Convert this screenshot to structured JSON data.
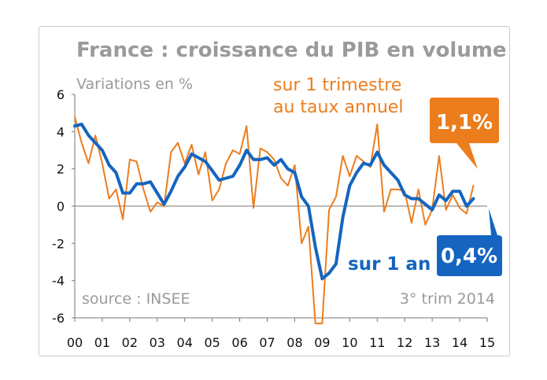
{
  "chart_data": {
    "type": "line",
    "title": "France : croissance du PIB en volume",
    "ylabel": "Variations en %",
    "ylim": [
      -6,
      6
    ],
    "yticks": [
      6,
      4,
      2,
      0,
      -2,
      -4,
      -6
    ],
    "x_tick_labels": [
      "00",
      "01",
      "02",
      "03",
      "04",
      "05",
      "06",
      "07",
      "08",
      "09",
      "10",
      "11",
      "12",
      "13",
      "14",
      "15"
    ],
    "xlim": [
      2000,
      2015
    ],
    "series": [
      {
        "name": "sur 1 trimestre au taux annuel",
        "color": "#ec7d1d",
        "x": [
          2000.0,
          2000.25,
          2000.5,
          2000.75,
          2001.0,
          2001.25,
          2001.5,
          2001.75,
          2002.0,
          2002.25,
          2002.5,
          2002.75,
          2003.0,
          2003.25,
          2003.5,
          2003.75,
          2004.0,
          2004.25,
          2004.5,
          2004.75,
          2005.0,
          2005.25,
          2005.5,
          2005.75,
          2006.0,
          2006.25,
          2006.5,
          2006.75,
          2007.0,
          2007.25,
          2007.5,
          2007.75,
          2008.0,
          2008.25,
          2008.5,
          2008.75,
          2009.0,
          2009.25,
          2009.5,
          2009.75,
          2010.0,
          2010.25,
          2010.5,
          2010.75,
          2011.0,
          2011.25,
          2011.5,
          2011.75,
          2012.0,
          2012.25,
          2012.5,
          2012.75,
          2013.0,
          2013.25,
          2013.5,
          2013.75,
          2014.0,
          2014.25,
          2014.5
        ],
        "values": [
          4.8,
          3.4,
          2.3,
          3.8,
          2.3,
          0.4,
          0.9,
          -0.7,
          2.5,
          2.4,
          0.9,
          -0.3,
          0.2,
          0.0,
          2.9,
          3.4,
          2.3,
          3.3,
          1.7,
          2.9,
          0.3,
          0.9,
          2.3,
          3.0,
          2.8,
          4.3,
          -0.1,
          3.1,
          2.9,
          2.5,
          1.5,
          1.1,
          2.2,
          -2.0,
          -1.1,
          -6.3,
          -6.3,
          -0.2,
          0.5,
          2.7,
          1.6,
          2.7,
          2.4,
          2.1,
          4.4,
          -0.3,
          0.9,
          0.9,
          0.8,
          -0.9,
          0.9,
          -1.0,
          -0.2,
          2.7,
          -0.2,
          0.6,
          -0.1,
          -0.4,
          1.1
        ]
      },
      {
        "name": "sur 1 an",
        "color": "#1565c0",
        "x": [
          2000.0,
          2000.25,
          2000.5,
          2000.75,
          2001.0,
          2001.25,
          2001.5,
          2001.75,
          2002.0,
          2002.25,
          2002.5,
          2002.75,
          2003.0,
          2003.25,
          2003.5,
          2003.75,
          2004.0,
          2004.25,
          2004.5,
          2004.75,
          2005.0,
          2005.25,
          2005.5,
          2005.75,
          2006.0,
          2006.25,
          2006.5,
          2006.75,
          2007.0,
          2007.25,
          2007.5,
          2007.75,
          2008.0,
          2008.25,
          2008.5,
          2008.75,
          2009.0,
          2009.25,
          2009.5,
          2009.75,
          2010.0,
          2010.25,
          2010.5,
          2010.75,
          2011.0,
          2011.25,
          2011.5,
          2011.75,
          2012.0,
          2012.25,
          2012.5,
          2012.75,
          2013.0,
          2013.25,
          2013.5,
          2013.75,
          2014.0,
          2014.25,
          2014.5
        ],
        "values": [
          4.3,
          4.4,
          3.8,
          3.4,
          3.0,
          2.2,
          1.8,
          0.7,
          0.7,
          1.2,
          1.2,
          1.3,
          0.7,
          0.1,
          0.8,
          1.6,
          2.1,
          2.8,
          2.6,
          2.4,
          1.9,
          1.4,
          1.5,
          1.6,
          2.2,
          3.0,
          2.5,
          2.5,
          2.6,
          2.2,
          2.5,
          2.0,
          1.8,
          0.5,
          0.0,
          -2.2,
          -3.9,
          -3.6,
          -3.1,
          -0.6,
          1.1,
          1.8,
          2.3,
          2.2,
          2.9,
          2.2,
          1.8,
          1.4,
          0.6,
          0.4,
          0.4,
          0.1,
          -0.2,
          0.6,
          0.3,
          0.8,
          0.8,
          0.0,
          0.4
        ]
      }
    ],
    "annotations": {
      "orange_label_line1": "sur 1 trimestre",
      "orange_label_line2": "au taux annuel",
      "blue_label": "sur 1 an",
      "orange_callout": "1,1%",
      "blue_callout": "0,4%",
      "source": "source : INSEE",
      "period": "3° trim 2014"
    }
  }
}
